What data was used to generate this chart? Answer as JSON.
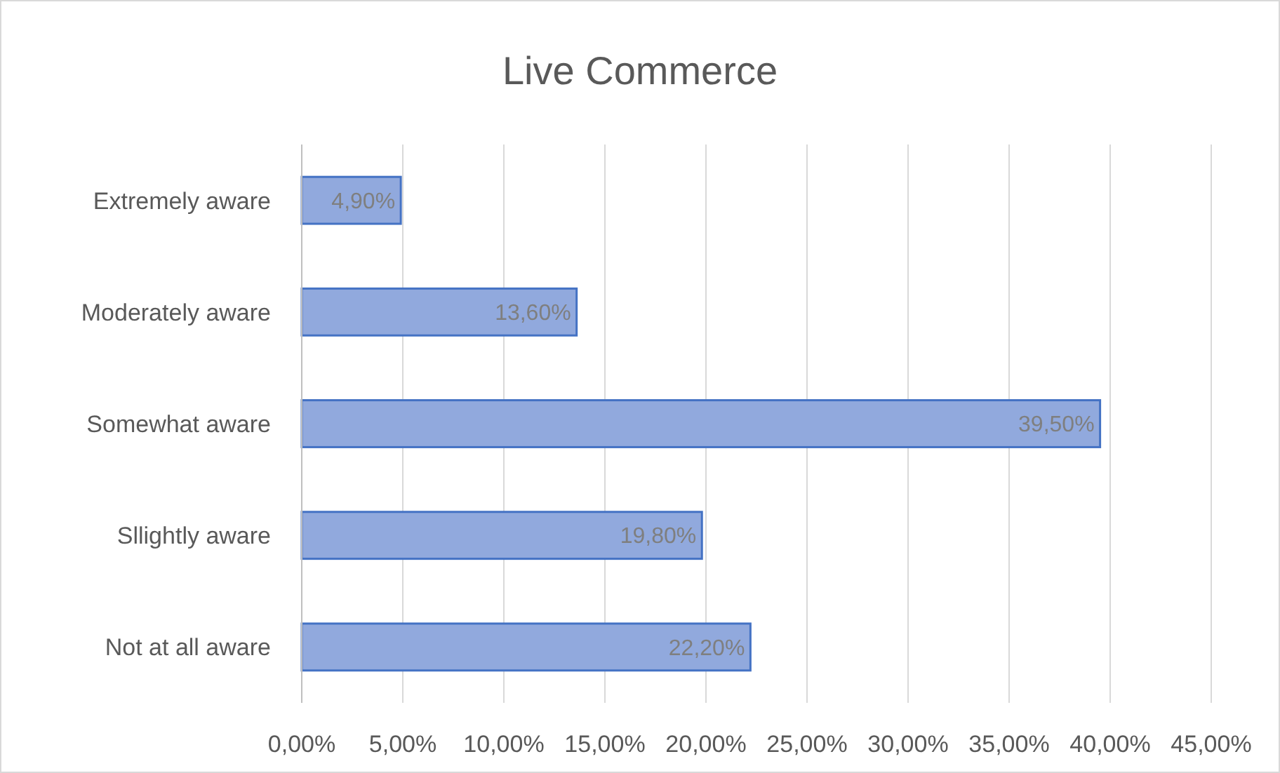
{
  "chart_data": {
    "type": "bar",
    "orientation": "horizontal",
    "title": "Live Commerce",
    "categories": [
      "Extremely aware",
      "Moderately aware",
      "Somewhat aware",
      "Sllightly aware",
      "Not at all aware"
    ],
    "values": [
      4.9,
      13.6,
      39.5,
      19.8,
      22.2
    ],
    "value_labels": [
      "4,90%",
      "13,60%",
      "39,50%",
      "19,80%",
      "22,20%"
    ],
    "color": "#91a9dd",
    "xlim": [
      0,
      45
    ],
    "xticks": [
      {
        "value": 0,
        "label": "0,00%"
      },
      {
        "value": 5,
        "label": "5,00%"
      },
      {
        "value": 10,
        "label": "10,00%"
      },
      {
        "value": 15,
        "label": "15,00%"
      },
      {
        "value": 20,
        "label": "20,00%"
      },
      {
        "value": 25,
        "label": "25,00%"
      },
      {
        "value": 30,
        "label": "30,00%"
      },
      {
        "value": 35,
        "label": "35,00%"
      },
      {
        "value": 40,
        "label": "40,00%"
      },
      {
        "value": 45,
        "label": "45,00%"
      }
    ],
    "grid": "x"
  }
}
